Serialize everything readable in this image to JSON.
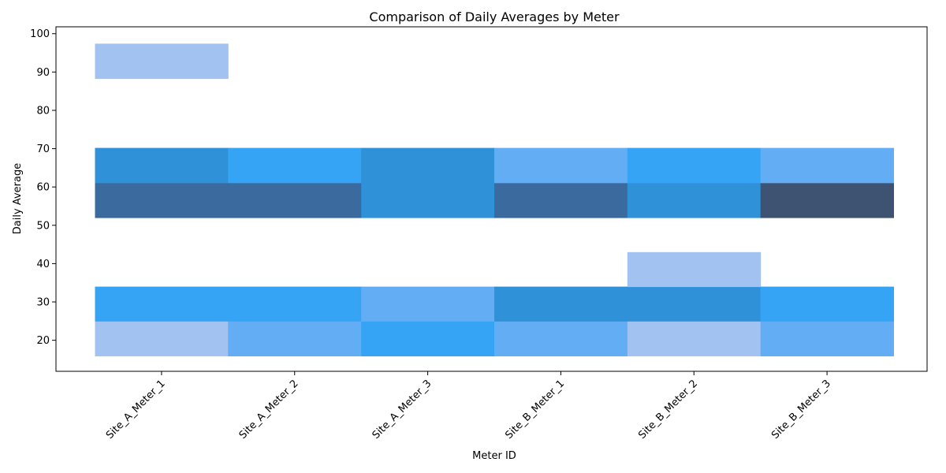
{
  "chart_data": {
    "type": "heatmap",
    "title": "Comparison of Daily Averages by Meter",
    "xlabel": "Meter ID",
    "ylabel": "Daily Average",
    "categories": [
      "Site_A_Meter_1",
      "Site_A_Meter_2",
      "Site_A_Meter_3",
      "Site_B_Meter_1",
      "Site_B_Meter_2",
      "Site_B_Meter_3"
    ],
    "y_ticks": [
      20,
      30,
      40,
      50,
      60,
      70,
      80,
      90,
      100
    ],
    "ylim": [
      11.9,
      101.8
    ],
    "y_bins": [
      15.9,
      25,
      34,
      43,
      52,
      61.1,
      70.2,
      79.2,
      88.3,
      97.4
    ],
    "counts": [
      [
        1,
        3,
        0,
        0,
        6,
        4,
        0,
        0,
        1
      ],
      [
        2,
        3,
        0,
        0,
        6,
        3,
        0,
        0,
        0
      ],
      [
        3,
        2,
        0,
        0,
        4,
        5,
        0,
        0,
        0
      ],
      [
        2,
        4,
        0,
        0,
        6,
        2,
        0,
        0,
        0
      ],
      [
        1,
        4,
        1,
        0,
        5,
        3,
        0,
        0,
        0
      ],
      [
        2,
        3,
        0,
        0,
        7,
        2,
        0,
        0,
        0
      ]
    ],
    "colormap": [
      "#a2c3f1",
      "#63adf5",
      "#36a4f4",
      "#2f91d8",
      "#3a6a9e",
      "#3d5371"
    ],
    "grid": false,
    "legend": "none"
  }
}
